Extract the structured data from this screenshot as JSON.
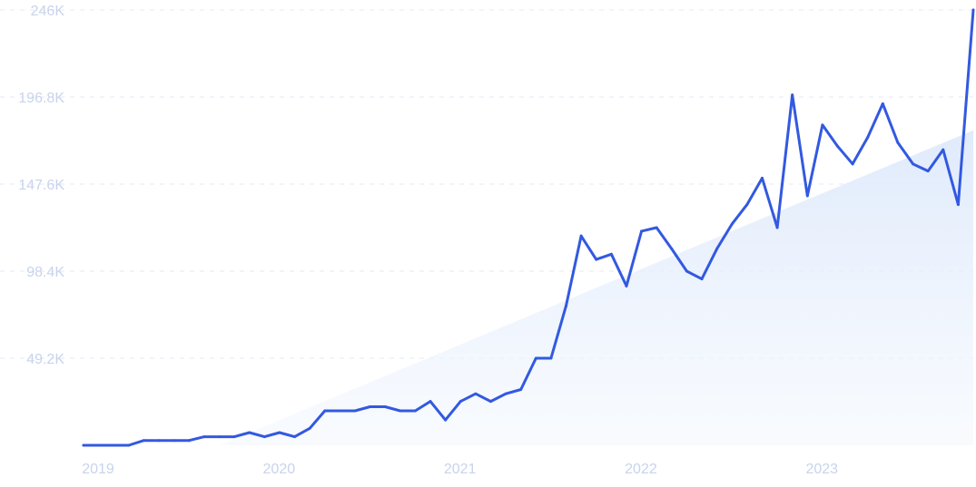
{
  "chart_data": {
    "type": "line",
    "title": "",
    "xlabel": "",
    "ylabel": "",
    "y_ticks": [
      "246K",
      "196.8K",
      "147.6K",
      "98.4K",
      "49.2K"
    ],
    "x_ticks": [
      "2019",
      "2020",
      "2021",
      "2022",
      "2023"
    ],
    "ylim": [
      0,
      246000
    ],
    "grid": "horizontal dashed",
    "colors": {
      "line": "#3259e0",
      "trend_area_top": "#dce8fb",
      "tick_text": "#c8d3ec",
      "grid": "#e3e9f5"
    },
    "series": [
      {
        "x_start": "2019-01",
        "x_step": "month",
        "values": [
          0,
          0,
          0,
          0,
          2700,
          2700,
          2700,
          2700,
          4800,
          4800,
          4800,
          7200,
          4800,
          7200,
          4800,
          9600,
          19500,
          19500,
          19500,
          21800,
          21800,
          19500,
          19500,
          24800,
          14300,
          24800,
          29100,
          24800,
          29100,
          31500,
          49200,
          49200,
          78800,
          118300,
          105000,
          108000,
          90000,
          121000,
          123000,
          111000,
          98400,
          94000,
          111000,
          125000,
          136000,
          151000,
          123000,
          198000,
          141000,
          181000,
          169000,
          159000,
          174000,
          193000,
          171000,
          159000,
          155000,
          167000,
          136000,
          246000
        ]
      }
    ],
    "trend": {
      "start": "2019-10",
      "start_value": 0,
      "end": "2023-12",
      "end_value": 178000
    }
  }
}
